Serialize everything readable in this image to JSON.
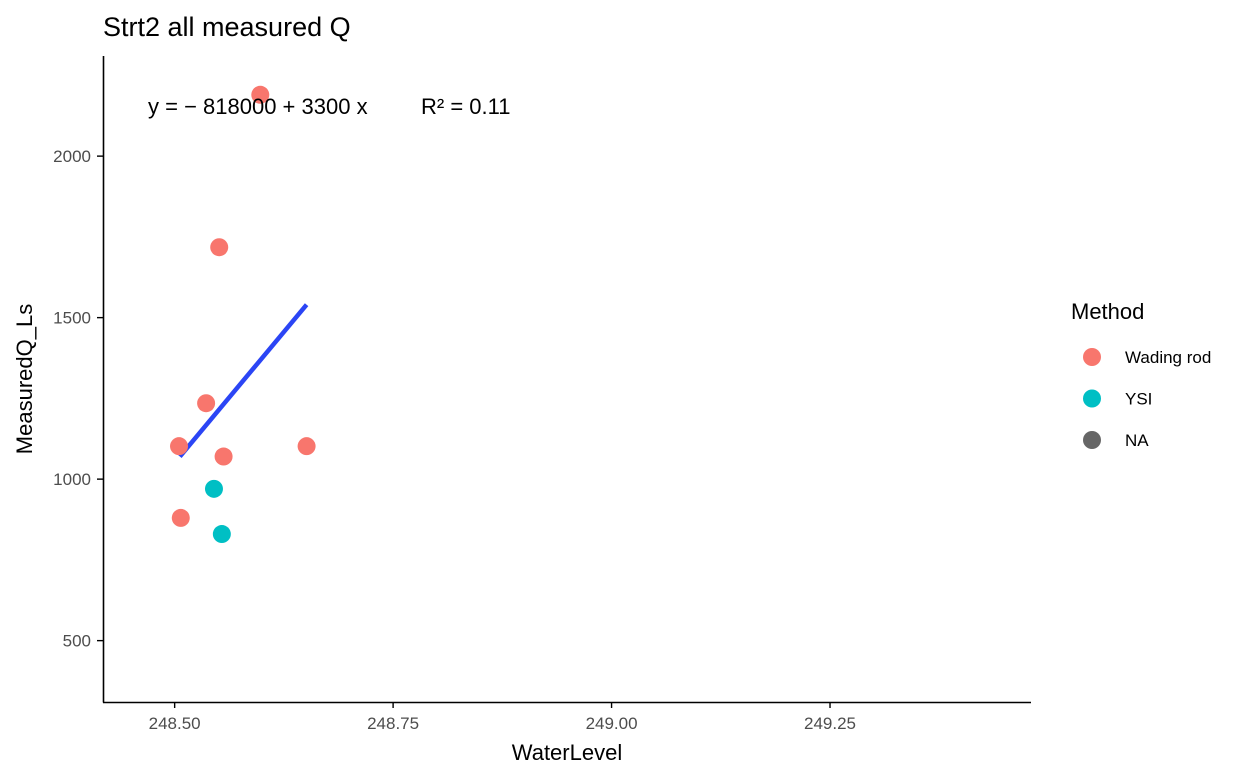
{
  "chart_data": {
    "type": "scatter",
    "title": "Strt2 all measured Q",
    "xlabel": "WaterLevel",
    "ylabel": "MeasuredQ_Ls",
    "xlim": [
      248.418,
      249.48
    ],
    "ylim": [
      310,
      2310
    ],
    "x_ticks": [
      248.5,
      248.75,
      249.0,
      249.25
    ],
    "x_tick_labels": [
      "248.50",
      "248.75",
      "249.00",
      "249.25"
    ],
    "y_ticks": [
      500,
      1000,
      1500,
      2000
    ],
    "y_tick_labels": [
      "500",
      "1000",
      "1500",
      "2000"
    ],
    "grid": false,
    "legend": {
      "title": "Method",
      "position": "right",
      "entries": [
        {
          "label": "Wading rod",
          "color": "#F8766D"
        },
        {
          "label": "YSI",
          "color": "#00BFC4"
        },
        {
          "label": "NA",
          "color": "#666666"
        }
      ]
    },
    "series": [
      {
        "name": "Wading rod",
        "color": "#F8766D",
        "points": [
          {
            "x": 248.598,
            "y": 2190
          },
          {
            "x": 248.551,
            "y": 1718
          },
          {
            "x": 248.536,
            "y": 1235
          },
          {
            "x": 248.505,
            "y": 1102
          },
          {
            "x": 248.556,
            "y": 1070
          },
          {
            "x": 248.651,
            "y": 1102
          },
          {
            "x": 248.507,
            "y": 880
          }
        ]
      },
      {
        "name": "YSI",
        "color": "#00BFC4",
        "points": [
          {
            "x": 248.545,
            "y": 970
          },
          {
            "x": 248.554,
            "y": 830
          }
        ]
      }
    ],
    "fit_line": {
      "color": "#2B45F5",
      "x": [
        248.506,
        248.651
      ],
      "y": [
        1070,
        1540
      ]
    },
    "annotation": {
      "equation_text": "y = − 818000 + 3300 x",
      "r2_text": "R² = 0.11"
    }
  }
}
